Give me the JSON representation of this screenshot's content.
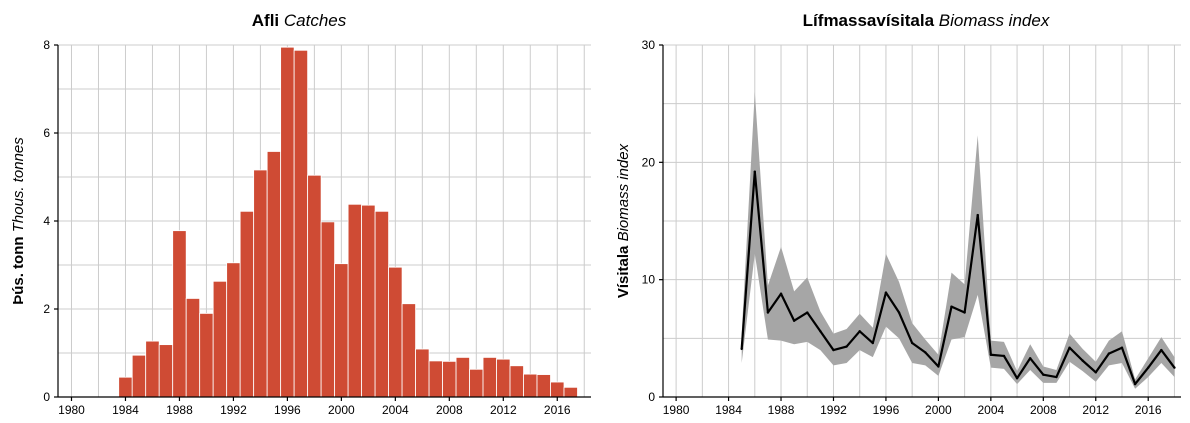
{
  "chart_data": [
    {
      "type": "bar",
      "title": "Afli",
      "title_italic": "Catches",
      "ylabel": "Þús. tonn",
      "ylabel_italic": "Thous. tonnes",
      "xlim": [
        1979,
        2018.5
      ],
      "ylim": [
        0,
        8
      ],
      "xticks": [
        1980,
        1984,
        1988,
        1992,
        1996,
        2000,
        2004,
        2008,
        2012,
        2016
      ],
      "yticks": [
        0,
        2,
        4,
        6,
        8
      ],
      "grid": true,
      "color": "#cf4b34",
      "x": [
        1984,
        1985,
        1986,
        1987,
        1988,
        1989,
        1990,
        1991,
        1992,
        1993,
        1994,
        1995,
        1996,
        1997,
        1998,
        1999,
        2000,
        2001,
        2002,
        2003,
        2004,
        2005,
        2006,
        2007,
        2008,
        2009,
        2010,
        2011,
        2012,
        2013,
        2014,
        2015,
        2016,
        2017
      ],
      "values": [
        0.45,
        0.95,
        1.27,
        1.19,
        3.78,
        2.24,
        1.9,
        2.63,
        3.05,
        4.22,
        5.16,
        5.58,
        7.95,
        7.88,
        5.04,
        3.98,
        3.03,
        4.38,
        4.36,
        4.22,
        2.95,
        2.12,
        1.09,
        0.82,
        0.81,
        0.9,
        0.63,
        0.9,
        0.86,
        0.71,
        0.52,
        0.51,
        0.34,
        0.22
      ]
    },
    {
      "type": "line",
      "title": "Lífmassavísitala",
      "title_italic": "Biomass index",
      "ylabel": "Vísitala",
      "ylabel_italic": "Biomass index",
      "xlim": [
        1979,
        2018.5
      ],
      "ylim": [
        0,
        30
      ],
      "xticks": [
        1980,
        1984,
        1988,
        1992,
        1996,
        2000,
        2004,
        2008,
        2012,
        2016
      ],
      "yticks": [
        0,
        10,
        20,
        30
      ],
      "grid": true,
      "band_color": "#a6a6a6",
      "x": [
        1985,
        1986,
        1987,
        1988,
        1989,
        1990,
        1991,
        1992,
        1993,
        1994,
        1995,
        1996,
        1997,
        1998,
        1999,
        2000,
        2001,
        2002,
        2003,
        2004,
        2005,
        2006,
        2007,
        2008,
        2009,
        2010,
        2011,
        2012,
        2013,
        2014,
        2015,
        2016,
        2017,
        2018
      ],
      "values": [
        4.1,
        19.2,
        7.2,
        8.8,
        6.5,
        7.2,
        5.6,
        4.0,
        4.3,
        5.6,
        4.6,
        8.9,
        7.2,
        4.6,
        3.8,
        2.6,
        7.7,
        7.2,
        15.5,
        3.6,
        3.5,
        1.6,
        3.3,
        1.9,
        1.7,
        4.2,
        3.1,
        2.1,
        3.7,
        4.2,
        1.1,
        2.5,
        4.0,
        2.5
      ],
      "lower": [
        2.9,
        12.2,
        4.9,
        4.8,
        4.5,
        4.7,
        4.0,
        2.7,
        2.9,
        4.0,
        3.4,
        6.0,
        5.0,
        2.9,
        2.7,
        1.8,
        4.9,
        5.1,
        8.7,
        2.5,
        2.4,
        1.1,
        2.3,
        1.2,
        1.2,
        3.0,
        2.2,
        1.3,
        2.7,
        2.9,
        0.7,
        1.7,
        2.9,
        1.7
      ],
      "upper": [
        5.4,
        26.0,
        9.5,
        12.8,
        9.0,
        10.2,
        7.3,
        5.4,
        5.8,
        7.1,
        5.9,
        12.2,
        9.8,
        6.3,
        4.9,
        3.6,
        10.6,
        9.6,
        22.3,
        4.8,
        4.7,
        2.2,
        4.5,
        2.6,
        2.3,
        5.4,
        4.1,
        3.0,
        4.8,
        5.6,
        1.5,
        3.3,
        5.1,
        3.4
      ]
    }
  ]
}
